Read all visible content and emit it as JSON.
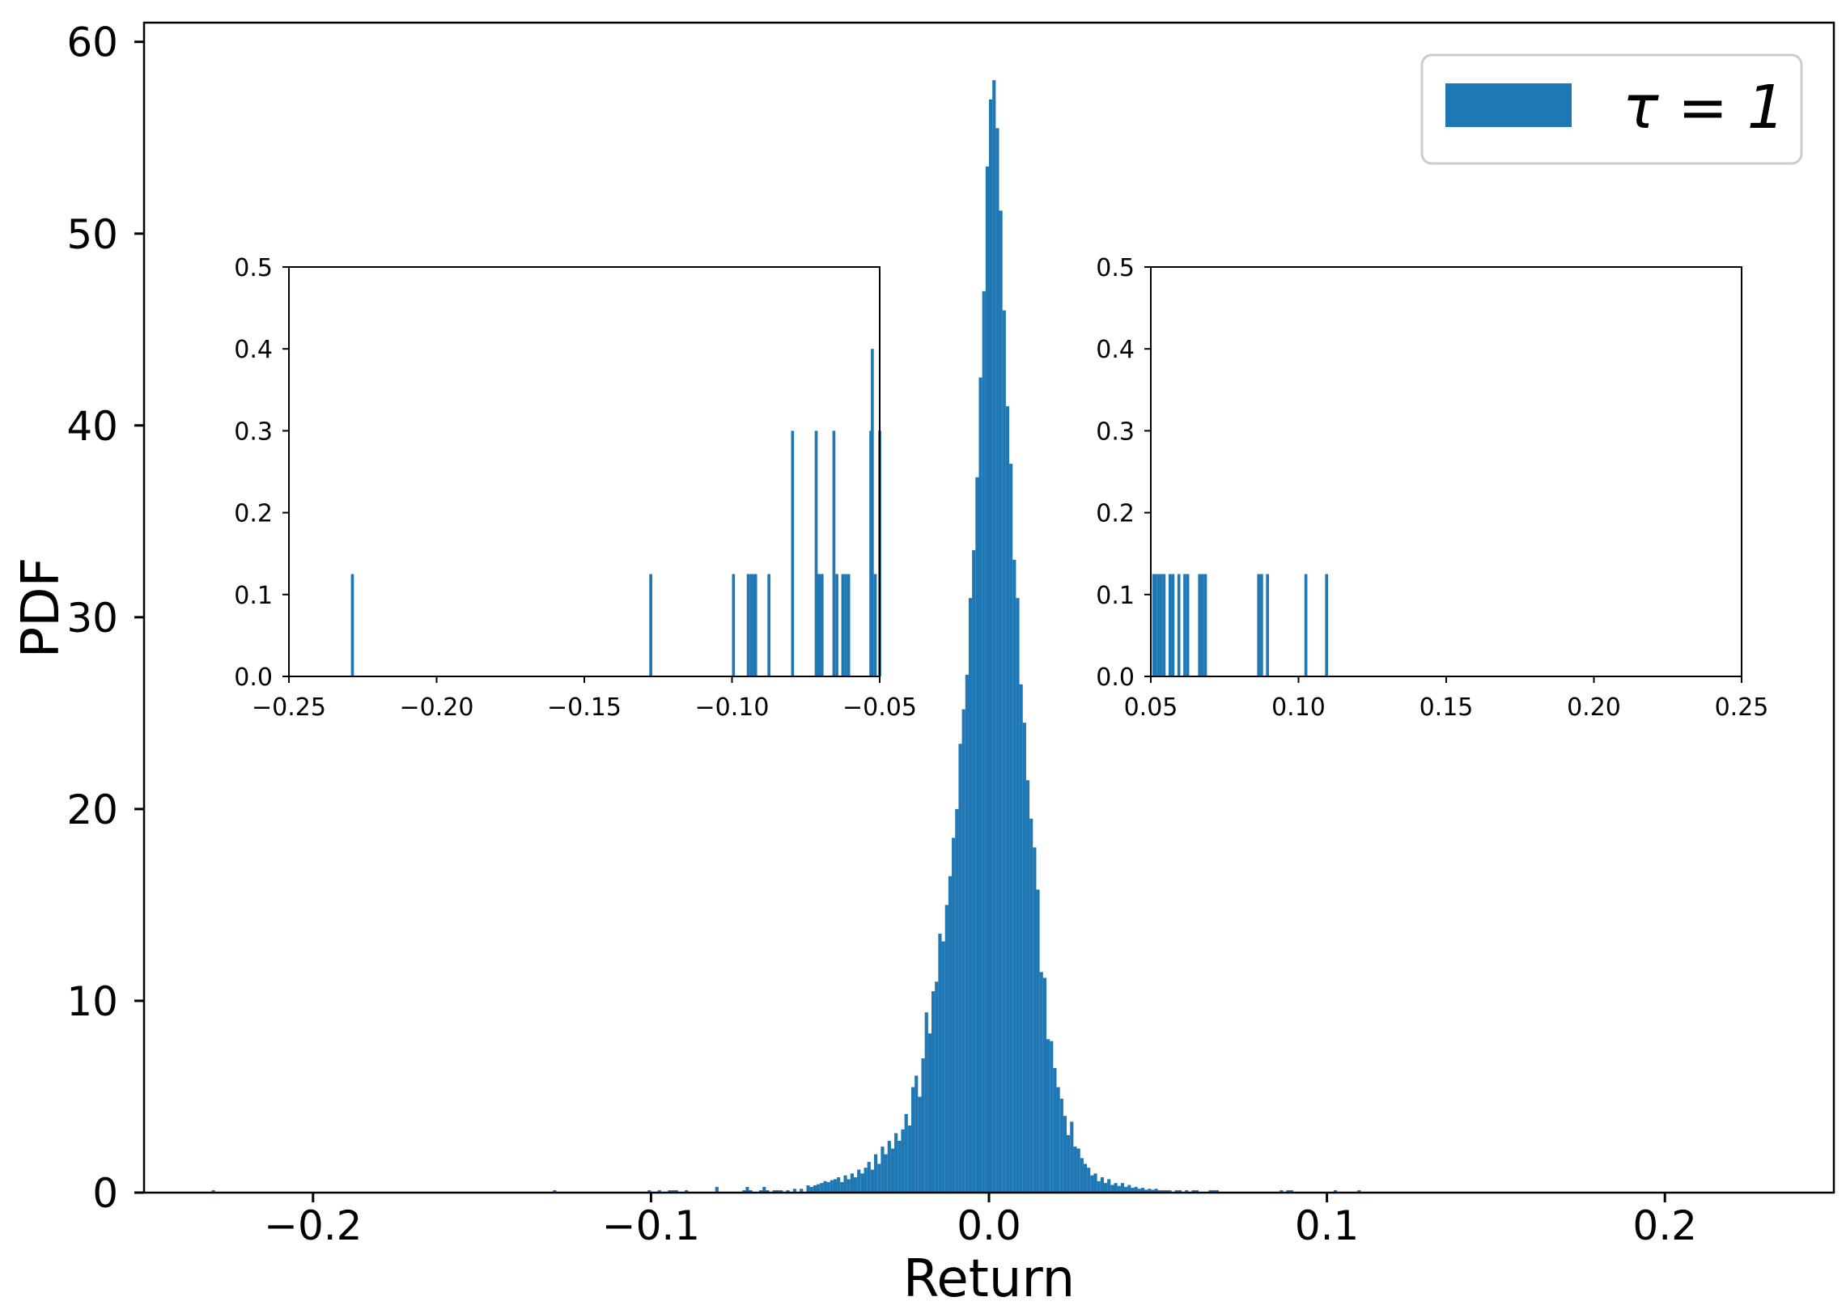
{
  "chart_data": [
    {
      "type": "bar",
      "subtype": "histogram",
      "role": "main",
      "xlabel": "Return",
      "ylabel": "PDF",
      "xlim": [
        -0.25,
        0.25
      ],
      "ylim": [
        0,
        61
      ],
      "xticks": [
        -0.2,
        -0.1,
        0.0,
        0.1,
        0.2
      ],
      "xtick_labels": [
        "−0.2",
        "−0.1",
        "0.0",
        "0.1",
        "0.2"
      ],
      "yticks": [
        0,
        10,
        20,
        30,
        40,
        50,
        60
      ],
      "ytick_labels": [
        "0",
        "10",
        "20",
        "30",
        "40",
        "50",
        "60"
      ],
      "grid": false,
      "legend": {
        "placement": "top-right",
        "label": "τ = 1"
      },
      "color": "#1f77b4",
      "bin_width": 0.001,
      "series": [
        {
          "bins": [
            [
              -0.23,
              0.125
            ],
            [
              -0.129,
              0.125
            ],
            [
              -0.101,
              0.125
            ],
            [
              -0.098,
              0.125
            ],
            [
              -0.095,
              0.125
            ],
            [
              -0.094,
              0.125
            ],
            [
              -0.093,
              0.125
            ],
            [
              -0.09,
              0.125
            ],
            [
              -0.081,
              0.3
            ],
            [
              -0.073,
              0.125
            ],
            [
              -0.072,
              0.3
            ],
            [
              -0.071,
              0.125
            ],
            [
              -0.068,
              0.125
            ],
            [
              -0.067,
              0.3
            ],
            [
              -0.066,
              0.125
            ],
            [
              -0.064,
              0.125
            ],
            [
              -0.063,
              0.125
            ],
            [
              -0.062,
              0.125
            ],
            [
              -0.06,
              0.125
            ],
            [
              -0.058,
              0.2
            ],
            [
              -0.056,
              0.2
            ],
            [
              -0.054,
              0.38
            ],
            [
              -0.053,
              0.3
            ],
            [
              -0.052,
              0.38
            ],
            [
              -0.051,
              0.44
            ],
            [
              -0.05,
              0.5
            ],
            [
              -0.049,
              0.6
            ],
            [
              -0.048,
              0.55
            ],
            [
              -0.047,
              0.65
            ],
            [
              -0.046,
              0.7
            ],
            [
              -0.045,
              0.8
            ],
            [
              -0.044,
              0.55
            ],
            [
              -0.043,
              0.9
            ],
            [
              -0.042,
              0.7
            ],
            [
              -0.041,
              1.0
            ],
            [
              -0.04,
              0.8
            ],
            [
              -0.039,
              1.2
            ],
            [
              -0.038,
              1.0
            ],
            [
              -0.037,
              1.3
            ],
            [
              -0.036,
              1.6
            ],
            [
              -0.035,
              1.2
            ],
            [
              -0.034,
              2.0
            ],
            [
              -0.033,
              1.5
            ],
            [
              -0.032,
              2.4
            ],
            [
              -0.031,
              2.0
            ],
            [
              -0.03,
              2.7
            ],
            [
              -0.029,
              2.3
            ],
            [
              -0.028,
              3.1
            ],
            [
              -0.027,
              2.7
            ],
            [
              -0.026,
              3.3
            ],
            [
              -0.025,
              4.1
            ],
            [
              -0.024,
              3.5
            ],
            [
              -0.023,
              5.5
            ],
            [
              -0.022,
              6.1
            ],
            [
              -0.021,
              5.0
            ],
            [
              -0.02,
              7.0
            ],
            [
              -0.019,
              9.4
            ],
            [
              -0.018,
              8.3
            ],
            [
              -0.017,
              10.5
            ],
            [
              -0.016,
              11.0
            ],
            [
              -0.015,
              13.5
            ],
            [
              -0.014,
              13.1
            ],
            [
              -0.013,
              15.0
            ],
            [
              -0.012,
              16.5
            ],
            [
              -0.011,
              18.5
            ],
            [
              -0.01,
              20.0
            ],
            [
              -0.009,
              23.4
            ],
            [
              -0.008,
              25.2
            ],
            [
              -0.007,
              27.0
            ],
            [
              -0.006,
              31.0
            ],
            [
              -0.005,
              33.5
            ],
            [
              -0.004,
              37.3
            ],
            [
              -0.003,
              42.5
            ],
            [
              -0.002,
              47.0
            ],
            [
              -0.001,
              53.5
            ],
            [
              0.0,
              57.0
            ],
            [
              0.001,
              58.0
            ],
            [
              0.002,
              55.5
            ],
            [
              0.003,
              51.2
            ],
            [
              0.004,
              46.0
            ],
            [
              0.005,
              41.0
            ],
            [
              0.006,
              38.0
            ],
            [
              0.007,
              33.0
            ],
            [
              0.008,
              31.0
            ],
            [
              0.009,
              26.5
            ],
            [
              0.01,
              24.5
            ],
            [
              0.011,
              21.5
            ],
            [
              0.012,
              19.5
            ],
            [
              0.013,
              18.0
            ],
            [
              0.014,
              15.8
            ],
            [
              0.015,
              11.5
            ],
            [
              0.016,
              11.2
            ],
            [
              0.017,
              8.0
            ],
            [
              0.018,
              7.9
            ],
            [
              0.019,
              6.5
            ],
            [
              0.02,
              5.5
            ],
            [
              0.021,
              4.9
            ],
            [
              0.022,
              4.0
            ],
            [
              0.023,
              3.0
            ],
            [
              0.024,
              3.7
            ],
            [
              0.025,
              2.4
            ],
            [
              0.026,
              2.3
            ],
            [
              0.027,
              1.8
            ],
            [
              0.028,
              1.5
            ],
            [
              0.029,
              1.3
            ],
            [
              0.03,
              0.9
            ],
            [
              0.031,
              1.0
            ],
            [
              0.032,
              0.6
            ],
            [
              0.033,
              0.8
            ],
            [
              0.034,
              0.5
            ],
            [
              0.035,
              0.7
            ],
            [
              0.036,
              0.4
            ],
            [
              0.037,
              0.5
            ],
            [
              0.038,
              0.35
            ],
            [
              0.039,
              0.5
            ],
            [
              0.04,
              0.3
            ],
            [
              0.041,
              0.4
            ],
            [
              0.042,
              0.25
            ],
            [
              0.043,
              0.3
            ],
            [
              0.044,
              0.2
            ],
            [
              0.045,
              0.25
            ],
            [
              0.046,
              0.15
            ],
            [
              0.047,
              0.2
            ],
            [
              0.048,
              0.15
            ],
            [
              0.049,
              0.2
            ],
            [
              0.05,
              0.125
            ],
            [
              0.051,
              0.125
            ],
            [
              0.052,
              0.125
            ],
            [
              0.053,
              0.125
            ],
            [
              0.055,
              0.125
            ],
            [
              0.056,
              0.125
            ],
            [
              0.058,
              0.125
            ],
            [
              0.06,
              0.125
            ],
            [
              0.061,
              0.125
            ],
            [
              0.065,
              0.125
            ],
            [
              0.066,
              0.125
            ],
            [
              0.067,
              0.125
            ],
            [
              0.086,
              0.125
            ],
            [
              0.088,
              0.125
            ],
            [
              0.089,
              0.125
            ],
            [
              0.102,
              0.125
            ],
            [
              0.109,
              0.125
            ]
          ]
        }
      ]
    },
    {
      "type": "bar",
      "subtype": "histogram",
      "role": "inset-left-tail",
      "xlim": [
        -0.25,
        -0.05
      ],
      "ylim": [
        0,
        0.5
      ],
      "xticks": [
        -0.25,
        -0.2,
        -0.15,
        -0.1,
        -0.05
      ],
      "xtick_labels": [
        "−0.25",
        "−0.20",
        "−0.15",
        "−0.10",
        "−0.05"
      ],
      "yticks": [
        0.0,
        0.1,
        0.2,
        0.3,
        0.4,
        0.5
      ],
      "ytick_labels": [
        "0.0",
        "0.1",
        "0.2",
        "0.3",
        "0.4",
        "0.5"
      ],
      "color": "#1f77b4",
      "series": [
        {
          "bins": [
            [
              -0.229,
              0.125
            ],
            [
              -0.128,
              0.125
            ],
            [
              -0.1,
              0.125
            ],
            [
              -0.095,
              0.125
            ],
            [
              -0.094,
              0.125
            ],
            [
              -0.093,
              0.125
            ],
            [
              -0.0925,
              0.125
            ],
            [
              -0.088,
              0.125
            ],
            [
              -0.08,
              0.3
            ],
            [
              -0.072,
              0.3
            ],
            [
              -0.0715,
              0.125
            ],
            [
              -0.071,
              0.125
            ],
            [
              -0.07,
              0.125
            ],
            [
              -0.066,
              0.3
            ],
            [
              -0.065,
              0.125
            ],
            [
              -0.063,
              0.125
            ],
            [
              -0.062,
              0.125
            ],
            [
              -0.061,
              0.125
            ],
            [
              -0.0535,
              0.3
            ],
            [
              -0.053,
              0.4
            ],
            [
              -0.052,
              0.125
            ],
            [
              -0.0505,
              0.3
            ]
          ]
        }
      ]
    },
    {
      "type": "bar",
      "subtype": "histogram",
      "role": "inset-right-tail",
      "xlim": [
        0.05,
        0.25
      ],
      "ylim": [
        0,
        0.5
      ],
      "xticks": [
        0.05,
        0.1,
        0.15,
        0.2,
        0.25
      ],
      "xtick_labels": [
        "0.05",
        "0.10",
        "0.15",
        "0.20",
        "0.25"
      ],
      "yticks": [
        0.0,
        0.1,
        0.2,
        0.3,
        0.4,
        0.5
      ],
      "ytick_labels": [
        "0.0",
        "0.1",
        "0.2",
        "0.3",
        "0.4",
        "0.5"
      ],
      "color": "#1f77b4",
      "series": [
        {
          "bins": [
            [
              0.0505,
              0.125
            ],
            [
              0.051,
              0.125
            ],
            [
              0.052,
              0.125
            ],
            [
              0.053,
              0.125
            ],
            [
              0.054,
              0.125
            ],
            [
              0.056,
              0.125
            ],
            [
              0.057,
              0.125
            ],
            [
              0.059,
              0.125
            ],
            [
              0.061,
              0.125
            ],
            [
              0.062,
              0.125
            ],
            [
              0.066,
              0.125
            ],
            [
              0.067,
              0.125
            ],
            [
              0.068,
              0.125
            ],
            [
              0.086,
              0.125
            ],
            [
              0.087,
              0.125
            ],
            [
              0.089,
              0.125
            ],
            [
              0.102,
              0.125
            ],
            [
              0.109,
              0.125
            ]
          ]
        }
      ]
    }
  ]
}
